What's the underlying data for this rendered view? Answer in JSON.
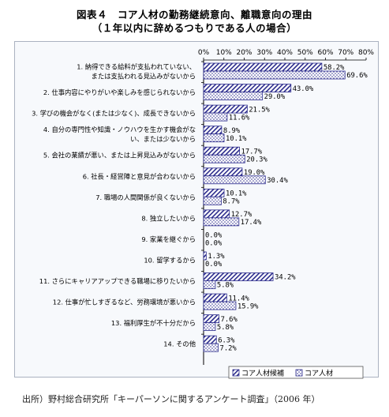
{
  "title": {
    "line1": "図表４　コア人材の勤務継続意向、離職意向の理由",
    "line2": "（１年以内に辞めるつもりである人の場合）"
  },
  "source": "出所）野村総合研究所「キーパーソンに関するアンケート調査」（2006 年）",
  "chart_data": {
    "type": "bar",
    "orientation": "horizontal",
    "xlim": [
      0,
      80
    ],
    "xticks": [
      "0%",
      "10%",
      "20%",
      "30%",
      "40%",
      "50%",
      "60%",
      "70%",
      "80%"
    ],
    "grid": false,
    "legend_position": "bottom-right",
    "categories": [
      [
        "1. 納得できる給料が支払われていない、",
        "または支払われる見込みがないから"
      ],
      [
        "2. 仕事内容にやりがいや楽しみを感じられないから"
      ],
      [
        "3. 学びの機会がなく(または少なく)、成長できないから"
      ],
      [
        "4. 自分の専門性や知識・ノウハウを生かす機会がな",
        "い、または少ないから"
      ],
      [
        "5. 会社の業績が悪い、または上昇見込みがないから"
      ],
      [
        "6. 社長・経営陣と意見が合わないから"
      ],
      [
        "7. 職場の人間関係が良くないから"
      ],
      [
        "8. 独立したいから"
      ],
      [
        "9. 家業を継ぐから"
      ],
      [
        "10. 留学するから"
      ],
      [
        "11. さらにキャリアアップできる職場に移りたいから"
      ],
      [
        "12. 仕事が忙しすぎるなど、労務環境が悪いから"
      ],
      [
        "13. 福利厚生が不十分だから"
      ],
      [
        "14. その他"
      ]
    ],
    "series": [
      {
        "name": "コア人材候補",
        "pattern": "hatch",
        "color": "#2b2b8c",
        "values": [
          58.2,
          43.0,
          21.5,
          8.9,
          17.7,
          19.0,
          10.1,
          12.7,
          0.0,
          1.3,
          34.2,
          11.4,
          7.6,
          6.3
        ],
        "labels": [
          "58.2%",
          "43.0%",
          "21.5%",
          "8.9%",
          "17.7%",
          "19.0%",
          "10.1%",
          "12.7%",
          "0.0%",
          "1.3%",
          "34.2%",
          "11.4%",
          "7.6%",
          "6.3%"
        ]
      },
      {
        "name": "コア人材",
        "pattern": "dots",
        "color": "#2b2b8c",
        "values": [
          69.6,
          29.0,
          11.6,
          10.1,
          20.3,
          30.4,
          8.7,
          17.4,
          0.0,
          0.0,
          5.8,
          15.9,
          5.8,
          7.2
        ],
        "labels": [
          "69.6%",
          "29.0%",
          "11.6%",
          "10.1%",
          "20.3%",
          "30.4%",
          "8.7%",
          "17.4%",
          "0.0%",
          "0.0%",
          "5.8%",
          "15.9%",
          "5.8%",
          "7.2%"
        ]
      }
    ]
  }
}
